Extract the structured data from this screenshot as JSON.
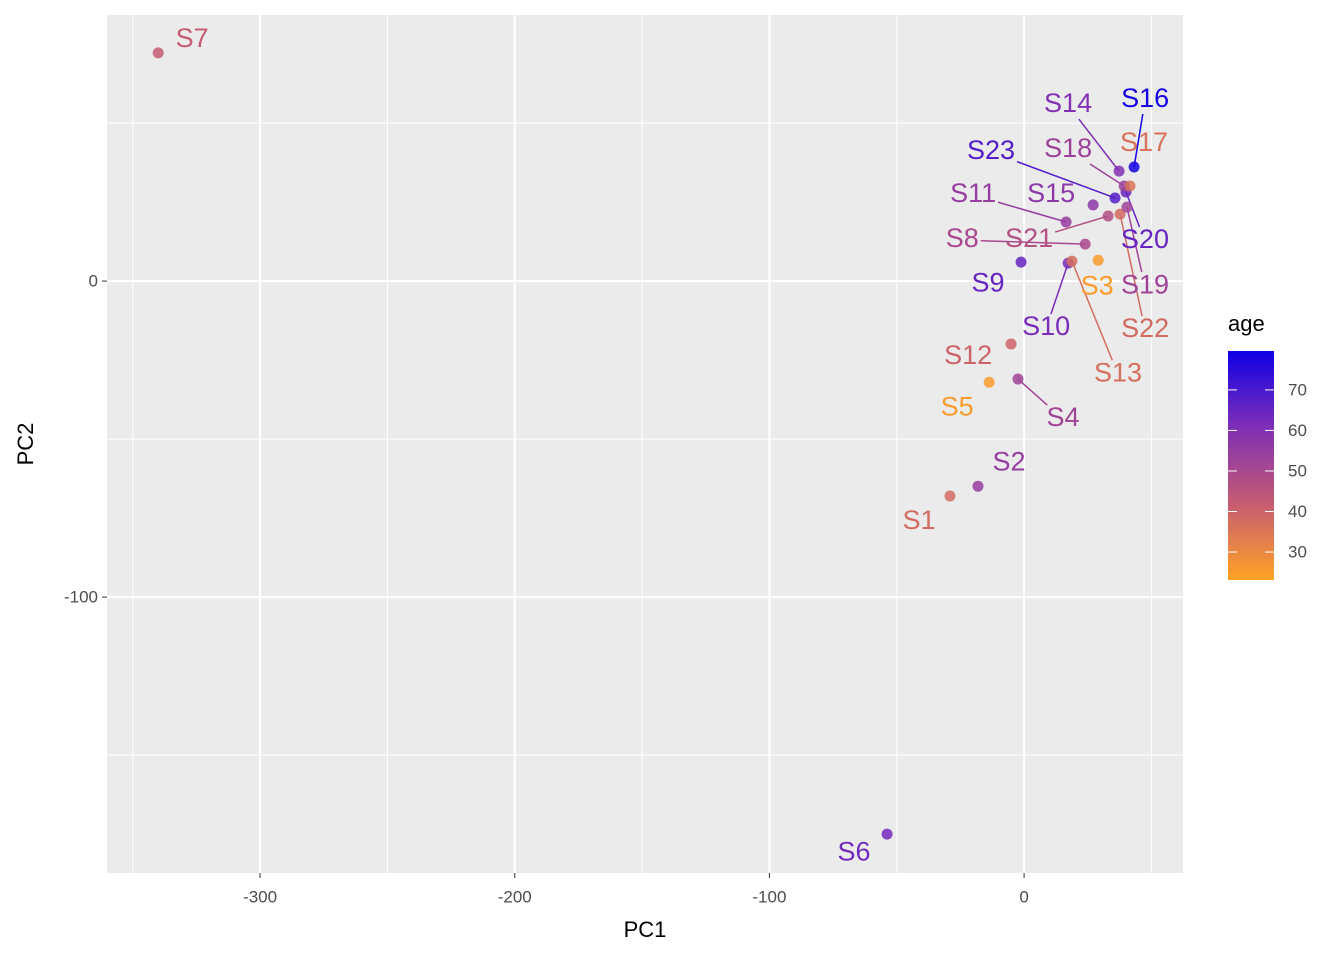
{
  "chart_data": {
    "type": "scatter",
    "x_label": "PC1",
    "y_label": "PC2",
    "xlim": [
      -360.1,
      62.4
    ],
    "ylim": [
      -187.3,
      84.2
    ],
    "xticks": [
      -300,
      -200,
      -100,
      0
    ],
    "yticks": [
      0,
      -100
    ],
    "xminor": [
      -350,
      -250,
      -150,
      -50,
      50
    ],
    "yminor": [
      50,
      -50,
      -150
    ],
    "grid": true,
    "labels": [
      "S7",
      "S6",
      "S1",
      "S2",
      "S5",
      "S4",
      "S12",
      "S9",
      "S10",
      "S13",
      "S3",
      "S8",
      "S11",
      "S21",
      "S15",
      "S22",
      "S19",
      "S23",
      "S20",
      "S18",
      "S17",
      "S14",
      "S16"
    ],
    "x": [
      -340.0,
      -53.8,
      -29.1,
      -18.1,
      -13.7,
      -2.4,
      -5.1,
      -1.2,
      17.3,
      18.8,
      29.1,
      24.0,
      16.5,
      33.0,
      27.1,
      37.7,
      40.4,
      35.7,
      40.0,
      39.3,
      41.6,
      37.3,
      43.2
    ],
    "y": [
      72.2,
      -175.0,
      -68.0,
      -64.9,
      -32.0,
      -31.0,
      -19.9,
      6.0,
      5.7,
      6.3,
      6.6,
      11.7,
      18.7,
      20.6,
      24.1,
      21.2,
      23.4,
      26.3,
      28.2,
      30.1,
      30.1,
      34.8,
      36.1
    ],
    "age": [
      42,
      63,
      38,
      55,
      25,
      52,
      40,
      65,
      62,
      37,
      25,
      50,
      55,
      47,
      57,
      38,
      52,
      68,
      65,
      53,
      36,
      60,
      79
    ],
    "legend_title": "age",
    "colorbar_lim": [
      23.1,
      79.6
    ],
    "colorbar_ticks": [
      30,
      40,
      50,
      60,
      70
    ],
    "color_scale": [
      "#FFA325",
      "#C65C72",
      "#7F2FB5",
      "#1000E6"
    ]
  }
}
